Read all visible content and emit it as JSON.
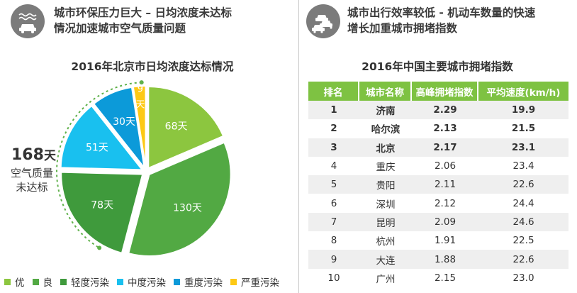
{
  "left": {
    "header_line1": "城市环保压力巨大 – 日均浓度未达标",
    "header_line2": "情况加速城市空气质量问题",
    "chart_title": "2016年北京市日均浓度达标情况",
    "total_value": "168",
    "total_unit": "天",
    "total_desc_line1": "空气质量",
    "total_desc_line2": "未达标"
  },
  "right": {
    "header_line1": "城市出行效率较低 - 机动车数量的快速",
    "header_line2": "增长加重城市拥堵指数",
    "chart_title": "2016年中国主要城市拥堵指数"
  },
  "chart_data": [
    {
      "type": "pie",
      "title": "2016年北京市日均浓度达标情况",
      "slices": [
        {
          "name": "优",
          "value": 68,
          "label": "68天",
          "color": "#8cc63f"
        },
        {
          "name": "良",
          "value": 130,
          "label": "130天",
          "color": "#52a943"
        },
        {
          "name": "轻度污染",
          "value": 78,
          "label": "78天",
          "color": "#3f9a3c"
        },
        {
          "name": "中度污染",
          "value": 51,
          "label": "51天",
          "color": "#19c0ef"
        },
        {
          "name": "重度污染",
          "value": 30,
          "label": "30天",
          "color": "#0c9ad9"
        },
        {
          "name": "严重污染",
          "value": 9,
          "label": "9天",
          "color": "#fdc915"
        }
      ],
      "legend_placement": "bottom",
      "annotation": "168天 空气质量未达标"
    },
    {
      "type": "table",
      "title": "2016年中国主要城市拥堵指数",
      "columns": [
        "排名",
        "城市名称",
        "高峰拥堵指数",
        "平均速度(km/h)"
      ],
      "rows": [
        [
          "1",
          "济南",
          "2.29",
          "19.9"
        ],
        [
          "2",
          "哈尔滨",
          "2.13",
          "21.5"
        ],
        [
          "3",
          "北京",
          "2.17",
          "23.1"
        ],
        [
          "4",
          "重庆",
          "2.06",
          "23.4"
        ],
        [
          "5",
          "贵阳",
          "2.11",
          "22.6"
        ],
        [
          "6",
          "深圳",
          "2.12",
          "24.4"
        ],
        [
          "7",
          "昆明",
          "2.09",
          "24.6"
        ],
        [
          "8",
          "杭州",
          "1.91",
          "22.5"
        ],
        [
          "9",
          "大连",
          "1.88",
          "22.6"
        ],
        [
          "10",
          "广州",
          "2.15",
          "23.0"
        ]
      ],
      "bold_rows": 3,
      "header_color": "#7ec242"
    }
  ]
}
